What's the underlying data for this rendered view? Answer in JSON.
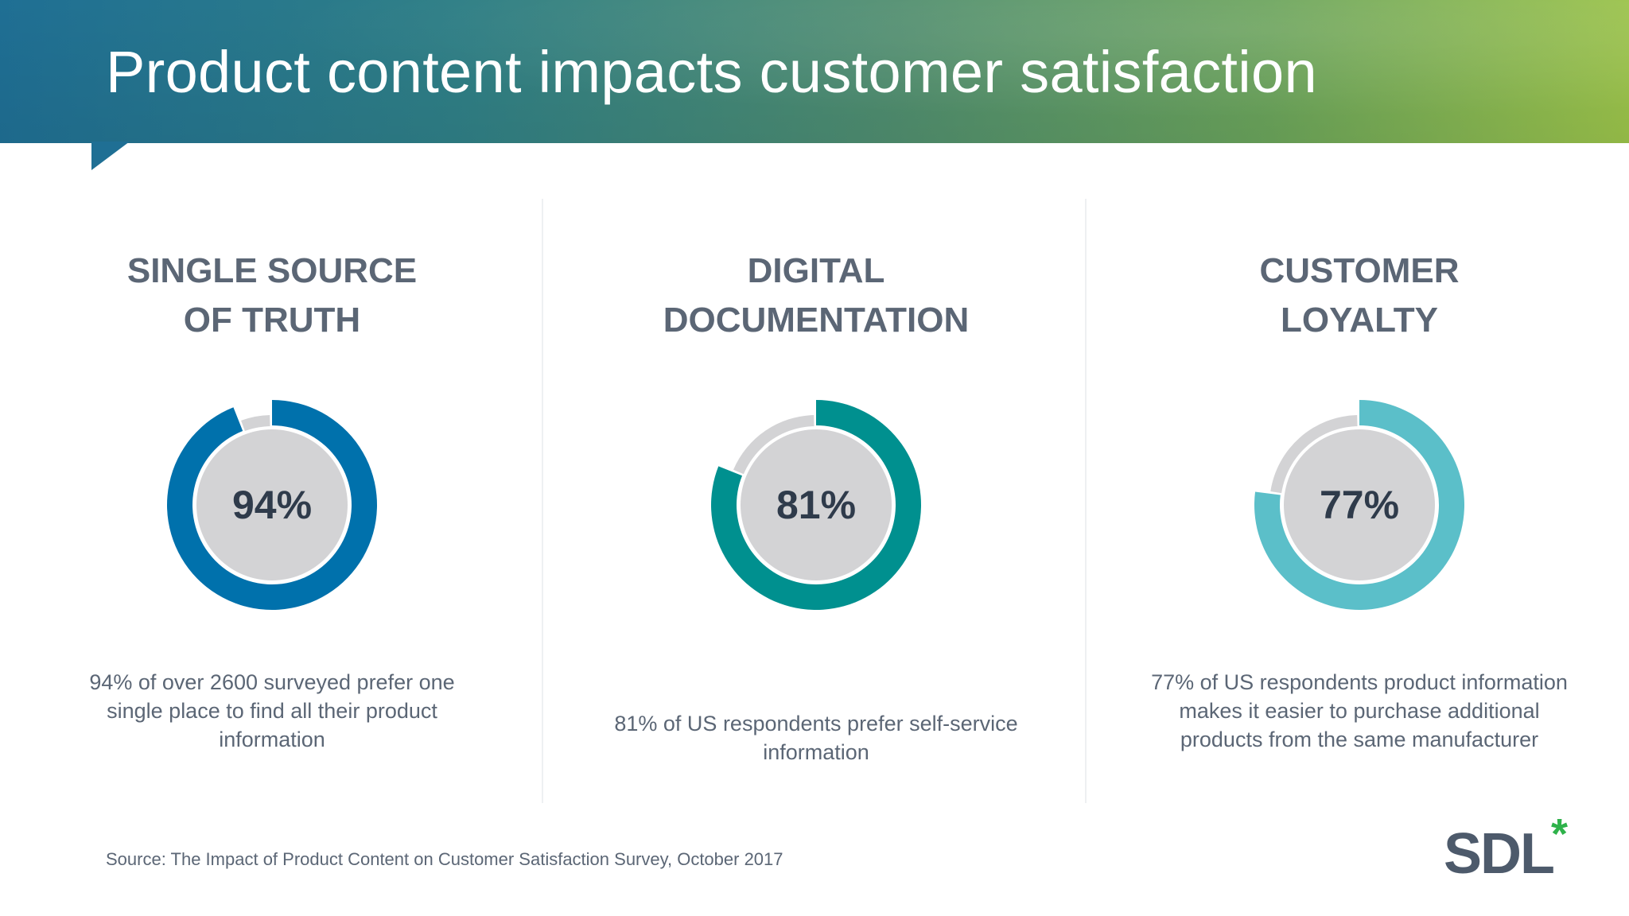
{
  "title": "Product content impacts customer satisfaction",
  "chart_data": [
    {
      "type": "pie",
      "title": "SINGLE SOURCE\nOF TRUTH",
      "value_percent": 94,
      "center_label": "94%",
      "description": "94% of over 2600 surveyed prefer one single place to find all their product information",
      "color": "#0071ac",
      "remainder_color": "#d3d3d5"
    },
    {
      "type": "pie",
      "title": "DIGITAL\nDOCUMENTATION",
      "value_percent": 81,
      "center_label": "81%",
      "description": "81% of US respondents prefer self-service information",
      "color": "#00908f",
      "remainder_color": "#d3d3d5"
    },
    {
      "type": "pie",
      "title": "CUSTOMER\nLOYALTY",
      "value_percent": 77,
      "center_label": "77%",
      "description": "77% of US respondents product information makes it easier to purchase additional products from the same manufacturer",
      "color": "#5bbfc9",
      "remainder_color": "#d3d3d5"
    }
  ],
  "source": "Source: The Impact of Product Content on Customer Satisfaction Survey, October 2017",
  "logo": {
    "text": "SDL",
    "mark": "*",
    "star_color": "#2eb24a"
  },
  "colors": {
    "center_fill": "#d3d3d5",
    "heading_text": "#5b6675",
    "value_text": "#2f3b4b"
  }
}
